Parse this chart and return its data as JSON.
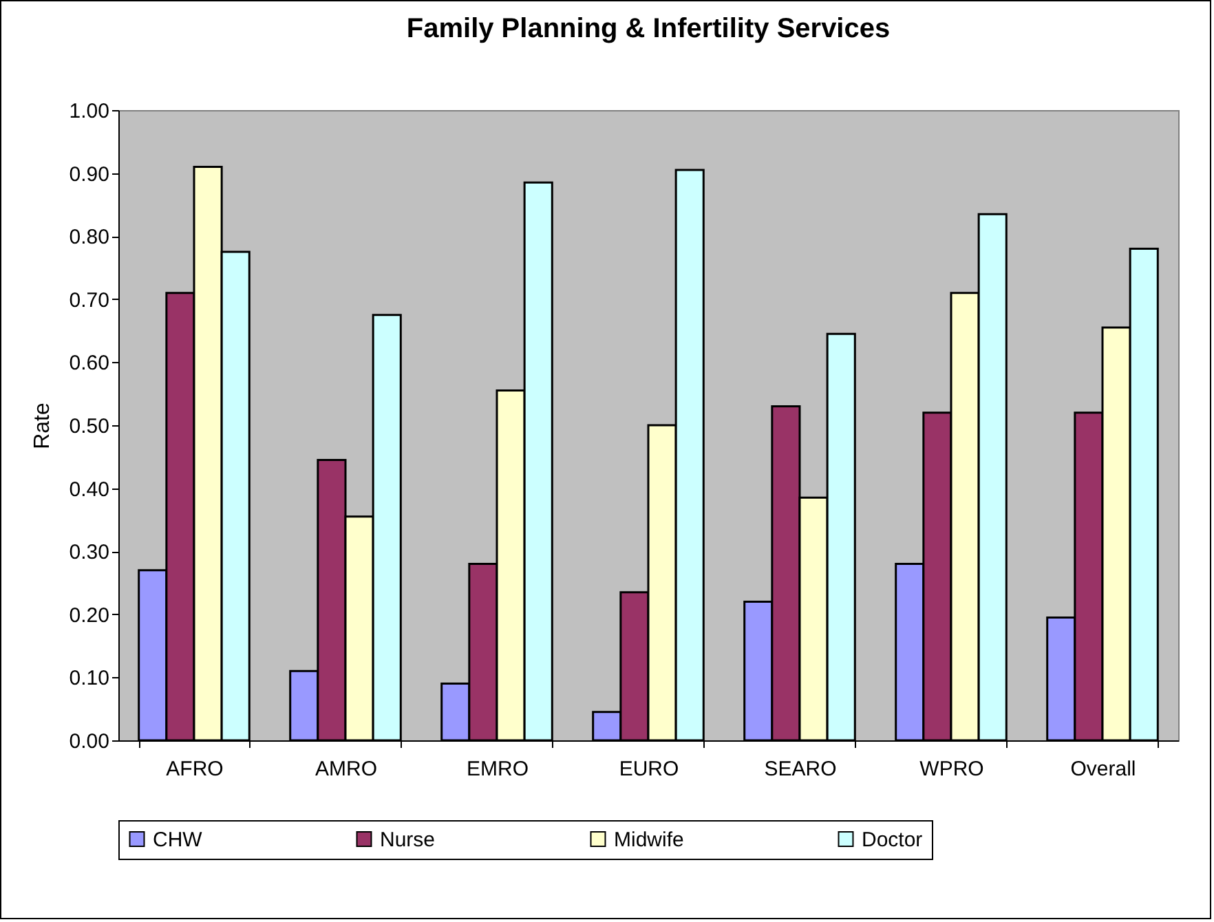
{
  "chart_data": {
    "type": "bar",
    "title": "Family Planning & Infertility Services",
    "ylabel": "Rate",
    "categories": [
      "AFRO",
      "AMRO",
      "EMRO",
      "EURO",
      "SEARO",
      "WPRO",
      "Overall"
    ],
    "series": [
      {
        "name": "CHW",
        "color": "#9999ff",
        "values": [
          0.27,
          0.11,
          0.09,
          0.045,
          0.22,
          0.28,
          0.195
        ]
      },
      {
        "name": "Nurse",
        "color": "#993366",
        "values": [
          0.71,
          0.445,
          0.28,
          0.235,
          0.53,
          0.52,
          0.52
        ]
      },
      {
        "name": "Midwife",
        "color": "#ffffcc",
        "values": [
          0.91,
          0.355,
          0.555,
          0.5,
          0.385,
          0.71,
          0.655
        ]
      },
      {
        "name": "Doctor",
        "color": "#ccffff",
        "values": [
          0.775,
          0.675,
          0.885,
          0.905,
          0.645,
          0.835,
          0.78
        ]
      }
    ],
    "ylim": [
      0,
      1
    ],
    "yticks": [
      {
        "value": 0,
        "label": "0.00"
      },
      {
        "value": 0.1,
        "label": "0.10"
      },
      {
        "value": 0.2,
        "label": "0.20"
      },
      {
        "value": 0.3,
        "label": "0.30"
      },
      {
        "value": 0.4,
        "label": "0.40"
      },
      {
        "value": 0.5,
        "label": "0.50"
      },
      {
        "value": 0.6,
        "label": "0.60"
      },
      {
        "value": 0.7,
        "label": "0.70"
      },
      {
        "value": 0.8,
        "label": "0.80"
      },
      {
        "value": 0.9,
        "label": "0.90"
      },
      {
        "value": 1,
        "label": "1.00"
      }
    ],
    "grid": false,
    "legend": "bottom"
  }
}
